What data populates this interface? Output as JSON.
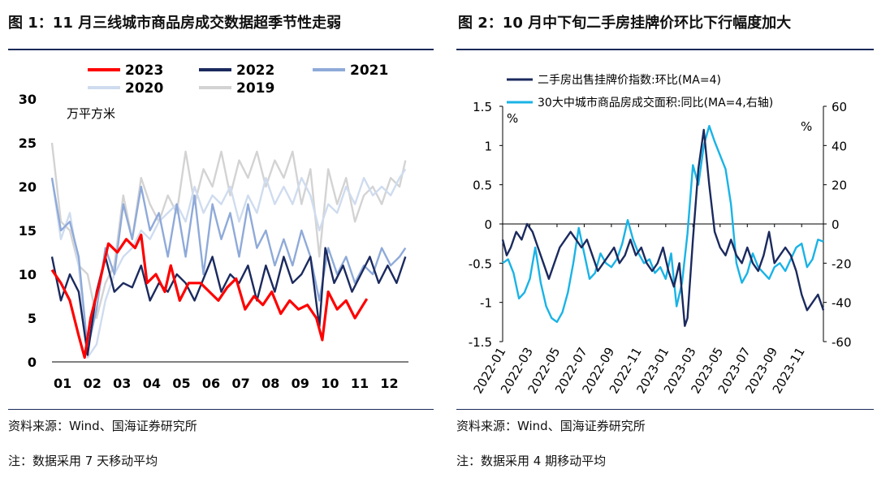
{
  "charts": [
    {
      "title": "图 1：11 月三线城市商品房成交数据超季节性走弱",
      "source": "资料来源：Wind、国海证券研究所",
      "note": "注：数据采用 7 天移动平均"
    },
    {
      "title": "图 2：10 月中下旬二手房挂牌价环比下行幅度加大",
      "source": "资料来源：Wind、国海证券研究所",
      "note": "注：数据采用 4 期移动平均"
    }
  ],
  "chart_data": [
    {
      "type": "line",
      "y_unit": "万平方米",
      "x_ticks": [
        "01",
        "02",
        "03",
        "04",
        "05",
        "06",
        "07",
        "08",
        "09",
        "10",
        "11",
        "12"
      ],
      "ylim": [
        0,
        30
      ],
      "y_ticks": [
        0,
        5,
        10,
        15,
        20,
        25,
        30
      ],
      "legend_placement": "top",
      "x_month_range": [
        1,
        13
      ],
      "series": [
        {
          "name": "2023",
          "color": "#ff0000",
          "width": 3.2,
          "month": [
            1,
            1.3,
            1.6,
            1.9,
            2.1,
            2.3,
            2.6,
            2.9,
            3.2,
            3.5,
            3.8,
            4.0,
            4.2,
            4.5,
            4.8,
            5.0,
            5.3,
            5.6,
            6.0,
            6.3,
            6.6,
            6.9,
            7.2,
            7.5,
            7.8,
            8.1,
            8.4,
            8.7,
            9.0,
            9.3,
            9.6,
            9.9,
            10.1,
            10.3,
            10.6,
            10.9,
            11.2,
            11.6
          ],
          "values": [
            10.5,
            9,
            7,
            3,
            0.5,
            5,
            9,
            13.5,
            12.5,
            14,
            13,
            14.5,
            9,
            10,
            8,
            11,
            7,
            9,
            9,
            8,
            7,
            8.5,
            9.5,
            6,
            7.5,
            6.5,
            8,
            5.5,
            7,
            6,
            6.5,
            5,
            2.5,
            8,
            6,
            7,
            5,
            7.2
          ]
        },
        {
          "name": "2022",
          "color": "#1b2a5e",
          "width": 2.4,
          "month": [
            1,
            1.3,
            1.6,
            1.9,
            2.2,
            2.5,
            2.8,
            3.1,
            3.4,
            3.7,
            4.0,
            4.3,
            4.6,
            4.9,
            5.2,
            5.5,
            5.8,
            6.1,
            6.4,
            6.7,
            7.0,
            7.3,
            7.6,
            7.9,
            8.2,
            8.5,
            8.8,
            9.1,
            9.4,
            9.7,
            10.0,
            10.2,
            10.5,
            10.8,
            11.1,
            11.4,
            11.7,
            12.0,
            12.3,
            12.6,
            12.9
          ],
          "values": [
            12,
            7,
            10,
            8,
            0.8,
            8,
            12,
            8,
            9,
            8.5,
            11,
            7,
            9,
            8,
            10,
            9,
            7,
            9.5,
            12,
            8,
            10,
            9,
            11,
            7,
            11,
            8,
            12,
            9,
            10,
            12,
            4,
            13,
            9,
            11,
            8,
            10,
            12,
            9,
            11,
            9,
            12
          ]
        },
        {
          "name": "2021",
          "color": "#8faad9",
          "width": 2.4,
          "month": [
            1,
            1.3,
            1.6,
            1.9,
            2.2,
            2.5,
            2.8,
            3.1,
            3.4,
            3.7,
            4.0,
            4.3,
            4.6,
            4.9,
            5.2,
            5.5,
            5.8,
            6.1,
            6.4,
            6.7,
            7.0,
            7.3,
            7.6,
            7.9,
            8.2,
            8.5,
            8.8,
            9.1,
            9.4,
            9.7,
            10.0,
            10.3,
            10.6,
            10.9,
            11.2,
            11.5,
            11.8,
            12.1,
            12.4,
            12.7,
            12.9
          ],
          "values": [
            21,
            15,
            16,
            12,
            1.5,
            6,
            13,
            10,
            18,
            14,
            20,
            15,
            17,
            12,
            18,
            12,
            19,
            10,
            18,
            14,
            17,
            12,
            18,
            13,
            15,
            11,
            14,
            11,
            15,
            12,
            7,
            13,
            10,
            12,
            9,
            11,
            10,
            13,
            11,
            12,
            13
          ]
        },
        {
          "name": "2020",
          "color": "#cfdcef",
          "width": 2.4,
          "month": [
            1,
            1.3,
            1.6,
            1.9,
            2.2,
            2.5,
            2.8,
            3.1,
            3.4,
            3.7,
            4.0,
            4.3,
            4.6,
            4.9,
            5.2,
            5.5,
            5.8,
            6.1,
            6.4,
            6.7,
            7.0,
            7.3,
            7.6,
            7.9,
            8.2,
            8.5,
            8.8,
            9.1,
            9.4,
            9.7,
            10.0,
            10.3,
            10.6,
            10.9,
            11.2,
            11.5,
            11.8,
            12.1,
            12.4,
            12.7,
            12.9
          ],
          "values": [
            21,
            14,
            17,
            11,
            0.5,
            2,
            7,
            10,
            12,
            13,
            15,
            14,
            16,
            17,
            18,
            16,
            20,
            17,
            19,
            18,
            20,
            16,
            19,
            17,
            21,
            18,
            20,
            18,
            21,
            19,
            15,
            18,
            17,
            20,
            18,
            21,
            19,
            20,
            19,
            21,
            22
          ]
        },
        {
          "name": "2019",
          "color": "#d3d3d3",
          "width": 2.4,
          "month": [
            1,
            1.3,
            1.6,
            1.9,
            2.2,
            2.5,
            2.8,
            3.1,
            3.4,
            3.7,
            4.0,
            4.3,
            4.6,
            4.9,
            5.2,
            5.5,
            5.8,
            6.1,
            6.4,
            6.7,
            7.0,
            7.3,
            7.6,
            7.9,
            8.2,
            8.5,
            8.8,
            9.1,
            9.4,
            9.7,
            10.0,
            10.3,
            10.6,
            10.9,
            11.2,
            11.5,
            11.8,
            12.1,
            12.4,
            12.7,
            12.9
          ],
          "values": [
            25,
            16,
            15,
            11,
            10,
            5,
            9,
            11,
            19,
            14,
            21,
            18,
            16,
            19,
            17,
            24,
            18,
            22,
            20,
            24,
            19,
            23,
            21,
            24,
            20,
            23,
            21,
            24,
            18,
            22,
            12,
            22,
            18,
            21,
            16,
            19,
            20,
            18,
            21,
            20,
            23
          ]
        }
      ]
    },
    {
      "type": "line",
      "y_left_unit": "%",
      "y_right_unit": "%",
      "ylim_left": [
        -1.5,
        1.5
      ],
      "y_left_ticks": [
        -1.5,
        -1,
        -0.5,
        0,
        0.5,
        1,
        1.5
      ],
      "ylim_right": [
        -60,
        60
      ],
      "y_right_ticks": [
        -60,
        -40,
        -20,
        0,
        20,
        40,
        60
      ],
      "x_ticks": [
        "2022-01",
        "2022-03",
        "2022-05",
        "2022-07",
        "2022-09",
        "2022-11",
        "2023-01",
        "2023-03",
        "2023-05",
        "2023-07",
        "2023-09",
        "2023-11"
      ],
      "x_month_range": [
        0,
        23.6
      ],
      "legend_placement": "top-left",
      "series": [
        {
          "name": "二手房出售挂牌价指数:环比(MA=4)",
          "axis": "left",
          "color": "#1b2a5e",
          "width": 2.4,
          "month": [
            0,
            0.3,
            0.6,
            1.0,
            1.4,
            1.8,
            2.2,
            2.6,
            3.0,
            3.4,
            3.8,
            4.2,
            4.6,
            5.0,
            5.4,
            5.8,
            6.2,
            6.6,
            7.0,
            7.4,
            7.8,
            8.2,
            8.6,
            9.0,
            9.4,
            9.8,
            10.2,
            10.6,
            11.0,
            11.4,
            11.8,
            12.2,
            12.6,
            13.0,
            13.4,
            13.6,
            14.0,
            14.4,
            14.8,
            15.2,
            15.6,
            16.0,
            16.4,
            16.8,
            17.2,
            17.6,
            18.0,
            18.4,
            18.8,
            19.2,
            19.6,
            20.0,
            20.4,
            20.8,
            21.2,
            21.6,
            22.0,
            22.4,
            22.8,
            23.2,
            23.6
          ],
          "values": [
            -0.2,
            -0.4,
            -0.3,
            -0.1,
            -0.2,
            0,
            -0.1,
            -0.3,
            -0.5,
            -0.7,
            -0.5,
            -0.3,
            -0.2,
            -0.1,
            -0.2,
            -0.3,
            -0.2,
            -0.4,
            -0.6,
            -0.5,
            -0.4,
            -0.3,
            -0.5,
            -0.4,
            -0.2,
            -0.4,
            -0.3,
            -0.5,
            -0.6,
            -0.5,
            -0.3,
            -0.6,
            -0.8,
            -0.5,
            -1.3,
            -1.2,
            -0.2,
            0.7,
            1.2,
            0.5,
            -0.1,
            -0.3,
            -0.4,
            -0.2,
            -0.4,
            -0.5,
            -0.3,
            -0.5,
            -0.6,
            -0.4,
            -0.1,
            -0.5,
            -0.4,
            -0.3,
            -0.4,
            -0.6,
            -0.9,
            -1.1,
            -1.0,
            -0.9,
            -1.1
          ]
        },
        {
          "name": "30大中城市商品房成交面积:同比(MA=4,右轴)",
          "axis": "right",
          "color": "#19b3e6",
          "width": 2.4,
          "month": [
            0,
            0.4,
            0.8,
            1.2,
            1.6,
            2.0,
            2.4,
            2.8,
            3.2,
            3.6,
            4.0,
            4.4,
            4.8,
            5.2,
            5.6,
            6.0,
            6.4,
            6.8,
            7.2,
            7.6,
            8.0,
            8.4,
            8.8,
            9.2,
            9.6,
            10.0,
            10.4,
            10.8,
            11.2,
            11.6,
            12.0,
            12.4,
            12.8,
            13.2,
            13.6,
            14.0,
            14.4,
            14.8,
            15.2,
            15.6,
            16.0,
            16.4,
            16.8,
            17.2,
            17.6,
            18.0,
            18.4,
            18.8,
            19.2,
            19.6,
            20.0,
            20.4,
            20.8,
            21.2,
            21.6,
            22.0,
            22.4,
            22.8,
            23.2,
            23.6
          ],
          "values": [
            -20,
            -18,
            -25,
            -38,
            -35,
            -28,
            -12,
            -30,
            -42,
            -48,
            -50,
            -45,
            -35,
            -20,
            -2,
            -15,
            -28,
            -25,
            -15,
            -20,
            -22,
            -18,
            -10,
            2,
            -8,
            -15,
            -20,
            -18,
            -25,
            -22,
            -28,
            -15,
            -42,
            -30,
            -5,
            30,
            20,
            40,
            50,
            42,
            35,
            28,
            10,
            -20,
            -30,
            -25,
            -15,
            -22,
            -25,
            -28,
            -22,
            -20,
            -24,
            -18,
            -12,
            -10,
            -22,
            -18,
            -8,
            -9
          ]
        }
      ]
    }
  ]
}
